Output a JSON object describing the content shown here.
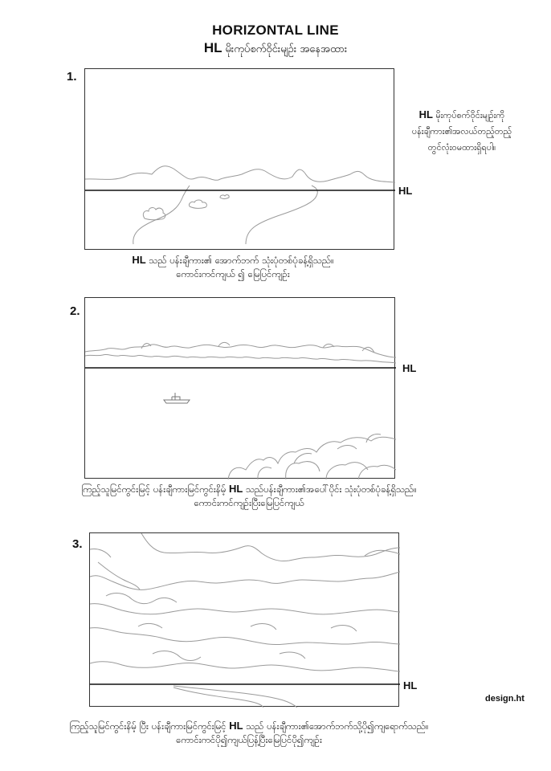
{
  "title": "HORIZONTAL LINE",
  "subtitle": {
    "prefix": "HL",
    "text": "မိုးကုပ်စက်ဝိုင်းမျဉ်း  အနေအထား"
  },
  "side_note": {
    "prefix": "HL",
    "line1": "မိုးကုပ်စက်ဝိုင်းမျဉ်းကို",
    "line2": "ပန်းချီကား၏အလယ်တည့်တည့်",
    "line3": "တွင်လုံးဝမထားရှိရပါ။"
  },
  "panels": [
    {
      "number": "1.",
      "hl_label": "HL",
      "caption_prefix": "HL",
      "caption_line1": "သည်  ပန်းချီကား၏  အောက်ဘက်  သုံးပုံတစ်ပုံခန့်ရှိသည်။",
      "caption_line2": "ကောင်းကင်ကျယ် ၍ မြေပြင်ကျဉ်း"
    },
    {
      "number": "2.",
      "hl_label": "HL",
      "caption_part1": "ကြည့်သူမြင်ကွင်းမြင့်  ပန်းချီကားမြင်ကွင်းနိမ့်",
      "caption_prefix": "HL",
      "caption_part2": "သည်ပန်းချီကား၏အပေါ်ပိုင်း  သုံးပုံတစ်ပုံခန့်ရှိသည်။",
      "caption_line2": "ကောင်းကင်ကျဉ်းပြီးမြေပြင်ကျယ်"
    },
    {
      "number": "3.",
      "hl_label": "HL",
      "caption_part1": "ကြည့်သူမြင်ကွင်းနိမ့်  ပြီး  ပန်းချီကားမြင်ကွင်းမြင့်",
      "caption_prefix": "HL",
      "caption_part2": "သည်  ပန်းချီကား၏အောက်ဘက်သို့ပို၍ကျရောက်သည်။",
      "caption_line2": "ကောင်းကင်ပို၍ကျယ်ပြန့်ပြီးမြေပြင်ပို၍ကျဉ်း"
    }
  ],
  "credit": "design.ht"
}
